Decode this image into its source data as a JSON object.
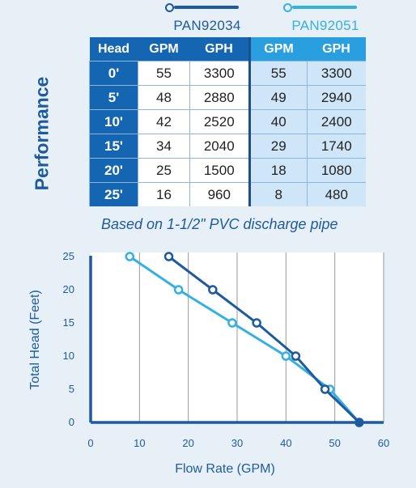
{
  "colors": {
    "dark": "#1566b2",
    "light": "#2a9fe0",
    "heading": "#1d4f8a",
    "plotbg": "#ffffff"
  },
  "legend": [
    {
      "name": "PAN92034",
      "color": "#1d5a9e"
    },
    {
      "name": "PAN92051",
      "color": "#35b0e3"
    }
  ],
  "table": {
    "title": "Performance",
    "headers": [
      "Head",
      "GPM",
      "GPH",
      "GPM",
      "GPH"
    ],
    "rows": [
      [
        "0'",
        "55",
        "3300",
        "55",
        "3300"
      ],
      [
        "5'",
        "48",
        "2880",
        "49",
        "2940"
      ],
      [
        "10'",
        "42",
        "2520",
        "40",
        "2400"
      ],
      [
        "15'",
        "34",
        "2040",
        "29",
        "1740"
      ],
      [
        "20'",
        "25",
        "1500",
        "18",
        "1080"
      ],
      [
        "25'",
        "16",
        "960",
        "8",
        "480"
      ]
    ],
    "note": "Based on 1-1/2\" PVC discharge pipe"
  },
  "chart_data": {
    "type": "line",
    "xlabel": "Flow Rate (GPM)",
    "ylabel": "Total Head (Feet)",
    "xlim": [
      0,
      60
    ],
    "ylim": [
      0,
      25
    ],
    "xticks": [
      0,
      10,
      20,
      30,
      40,
      50,
      60
    ],
    "yticks": [
      0,
      5,
      10,
      15,
      20,
      25
    ],
    "grid": "vertical",
    "series": [
      {
        "name": "PAN92034",
        "color": "#1d5a9e",
        "filled": true,
        "x": [
          55,
          48,
          42,
          34,
          25,
          16
        ],
        "y": [
          0,
          5,
          10,
          15,
          20,
          25
        ]
      },
      {
        "name": "PAN92051",
        "color": "#35b0e3",
        "filled": false,
        "x": [
          55,
          49,
          40,
          29,
          18,
          8
        ],
        "y": [
          0,
          5,
          10,
          15,
          20,
          25
        ]
      }
    ]
  }
}
